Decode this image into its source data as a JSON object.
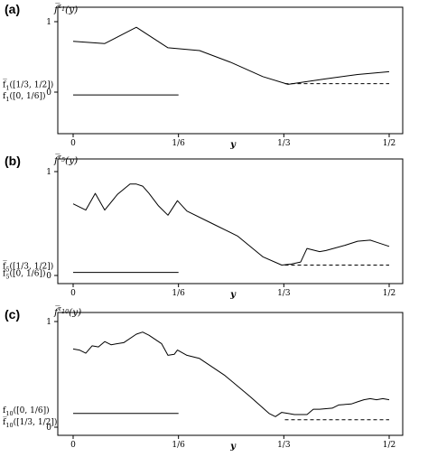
{
  "chart_data": [
    {
      "panel": "(a)",
      "type": "line",
      "ylabel": "f̅^{τ_1}(y)",
      "xlabel": "y",
      "xlim": [
        0,
        0.5
      ],
      "ylim": [
        -0.05,
        1.0
      ],
      "x_ticks": [
        {
          "value": 0,
          "label": "0"
        },
        {
          "value": 0.16667,
          "label": "1/6"
        },
        {
          "value": 0.33333,
          "label": "1/3"
        },
        {
          "value": 0.5,
          "label": "1/2"
        }
      ],
      "y_ticks": [
        {
          "value": 0,
          "label": "0"
        },
        {
          "value": 1,
          "label": "1"
        }
      ],
      "series": [
        {
          "style": "solid",
          "x": [
            0,
            0.05,
            0.1,
            0.15,
            0.2,
            0.25,
            0.3,
            0.34,
            0.4,
            0.45,
            0.5
          ],
          "y": [
            0.72,
            0.69,
            0.92,
            0.63,
            0.59,
            0.42,
            0.22,
            0.11,
            0.19,
            0.25,
            0.29
          ]
        },
        {
          "style": "dashed",
          "x": [
            0.335,
            0.5
          ],
          "y": [
            0.12,
            0.12
          ]
        },
        {
          "style": "solid",
          "x": [
            0,
            0.1667
          ],
          "y": [
            -0.04,
            -0.04
          ]
        }
      ],
      "annotations": [
        {
          "text": "f̅_1([1/3, 1/2])",
          "y": 0.12
        },
        {
          "text": "f_1([0, 1/6])",
          "y": -0.04
        }
      ]
    },
    {
      "panel": "(b)",
      "type": "line",
      "ylabel": "f̅^{τ_5}(y)",
      "xlabel": "y",
      "xlim": [
        0,
        0.5
      ],
      "ylim": [
        -0.05,
        1.0
      ],
      "x_ticks": [
        {
          "value": 0,
          "label": "0"
        },
        {
          "value": 0.16667,
          "label": "1/6"
        },
        {
          "value": 0.33333,
          "label": "1/3"
        },
        {
          "value": 0.5,
          "label": "1/2"
        }
      ],
      "y_ticks": [
        {
          "value": 0,
          "label": "0"
        },
        {
          "value": 1,
          "label": "1"
        }
      ],
      "series": [
        {
          "style": "solid",
          "x": [
            0,
            0.02,
            0.035,
            0.05,
            0.07,
            0.09,
            0.1,
            0.11,
            0.12,
            0.135,
            0.15,
            0.165,
            0.18,
            0.22,
            0.26,
            0.3,
            0.33,
            0.345,
            0.36,
            0.37,
            0.39,
            0.4,
            0.43,
            0.45,
            0.47,
            0.48,
            0.5
          ],
          "y": [
            0.69,
            0.63,
            0.79,
            0.63,
            0.78,
            0.88,
            0.88,
            0.86,
            0.79,
            0.67,
            0.58,
            0.72,
            0.62,
            0.5,
            0.38,
            0.18,
            0.1,
            0.11,
            0.13,
            0.26,
            0.23,
            0.24,
            0.29,
            0.33,
            0.34,
            0.32,
            0.28
          ]
        },
        {
          "style": "dashed",
          "x": [
            0.335,
            0.5
          ],
          "y": [
            0.1,
            0.1
          ]
        },
        {
          "style": "solid",
          "x": [
            0,
            0.1667
          ],
          "y": [
            0.03,
            0.03
          ]
        }
      ],
      "annotations": [
        {
          "text": "f̅_5([1/3, 1/2])",
          "y": 0.1
        },
        {
          "text": "f_5([0, 1/6])",
          "y": 0.03
        }
      ]
    },
    {
      "panel": "(c)",
      "type": "line",
      "ylabel": "f̅^{τ_10}(y)",
      "xlabel": "y",
      "xlim": [
        0,
        0.5
      ],
      "ylim": [
        -0.05,
        1.0
      ],
      "x_ticks": [
        {
          "value": 0,
          "label": "0"
        },
        {
          "value": 0.16667,
          "label": "1/6"
        },
        {
          "value": 0.33333,
          "label": "1/3"
        },
        {
          "value": 0.5,
          "label": "1/2"
        }
      ],
      "y_ticks": [
        {
          "value": 0,
          "label": "0"
        },
        {
          "value": 1,
          "label": "1"
        }
      ],
      "series": [
        {
          "style": "solid",
          "x": [
            0,
            0.01,
            0.02,
            0.03,
            0.04,
            0.05,
            0.06,
            0.08,
            0.1,
            0.11,
            0.12,
            0.14,
            0.15,
            0.16,
            0.165,
            0.18,
            0.2,
            0.24,
            0.28,
            0.31,
            0.32,
            0.33,
            0.34,
            0.35,
            0.37,
            0.38,
            0.39,
            0.41,
            0.42,
            0.44,
            0.45,
            0.46,
            0.47,
            0.48,
            0.49,
            0.5
          ],
          "y": [
            0.74,
            0.73,
            0.7,
            0.77,
            0.76,
            0.81,
            0.78,
            0.8,
            0.88,
            0.9,
            0.87,
            0.79,
            0.68,
            0.69,
            0.73,
            0.68,
            0.65,
            0.49,
            0.29,
            0.13,
            0.1,
            0.14,
            0.13,
            0.12,
            0.12,
            0.17,
            0.17,
            0.18,
            0.21,
            0.22,
            0.24,
            0.26,
            0.27,
            0.26,
            0.27,
            0.26
          ]
        },
        {
          "style": "dashed",
          "x": [
            0.335,
            0.5
          ],
          "y": [
            0.07,
            0.07
          ]
        },
        {
          "style": "solid",
          "x": [
            0,
            0.1667
          ],
          "y": [
            0.13,
            0.13
          ]
        }
      ],
      "annotations": [
        {
          "text": "f_10([0, 1/6])",
          "y": 0.17
        },
        {
          "text": "f̅_10([1/3, 1/2])",
          "y": 0.06
        }
      ]
    }
  ]
}
